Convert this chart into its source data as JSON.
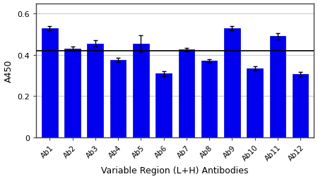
{
  "categories": [
    "Ab1",
    "Ab2",
    "Ab3",
    "Ab4",
    "Ab5",
    "Ab6",
    "Ab7",
    "Ab8",
    "Ab9",
    "Ab10",
    "Ab11",
    "Ab12"
  ],
  "values": [
    0.53,
    0.43,
    0.455,
    0.375,
    0.455,
    0.31,
    0.425,
    0.37,
    0.53,
    0.335,
    0.49,
    0.305
  ],
  "errors": [
    0.01,
    0.01,
    0.015,
    0.01,
    0.04,
    0.012,
    0.008,
    0.008,
    0.01,
    0.01,
    0.015,
    0.012
  ],
  "bar_color": "#0000EE",
  "bar_edgecolor": "#0000CC",
  "error_color": "black",
  "hline_y": 0.42,
  "hline_color": "black",
  "hline_linewidth": 1.2,
  "ylabel": "A450",
  "xlabel": "Variable Region (L+H) Antibodies",
  "ylim": [
    0,
    0.65
  ],
  "yticks": [
    0,
    0.2,
    0.4,
    0.6
  ],
  "ytick_labels": [
    "0",
    "0.2",
    "0.4",
    "0.6"
  ],
  "background_color": "#ffffff",
  "bar_width": 0.7,
  "figsize": [
    4.5,
    2.55
  ],
  "dpi": 100,
  "grid_color": "#cccccc",
  "spine_color": "#444444"
}
